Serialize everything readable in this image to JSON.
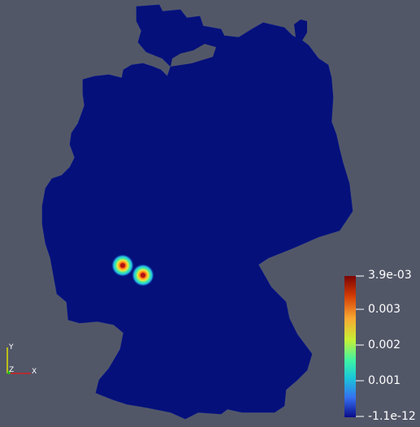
{
  "colorbar": {
    "max_label": "3.9e-03",
    "tick_labels": [
      "0.003",
      "0.002",
      "0.001"
    ],
    "min_label": "-1.1e-12",
    "colormap": [
      "#7a0403",
      "#d33b04",
      "#f9a832",
      "#c7ef34",
      "#3df3a5",
      "#1ac7d9",
      "#3571f1",
      "#30123b"
    ]
  },
  "axes_widget": {
    "y": "Y",
    "z": "Z",
    "x": "X"
  },
  "colors": {
    "background": "#525768",
    "map_fill": "#05107a",
    "hotspot_peak": "#c01010"
  }
}
